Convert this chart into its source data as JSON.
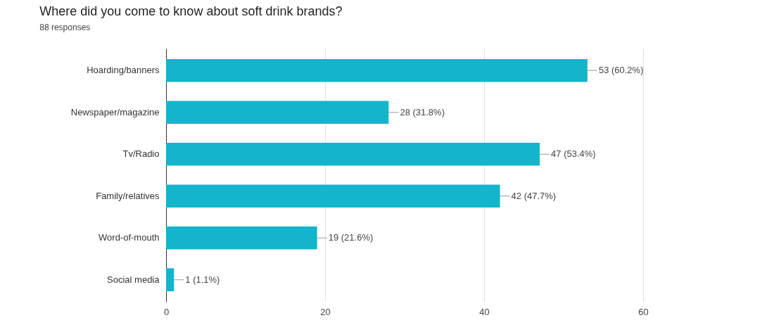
{
  "chart_data": {
    "type": "bar",
    "orientation": "horizontal",
    "title": "Where did you come to know about soft drink brands?",
    "subtitle": "88 responses",
    "categories": [
      "Hoarding/banners",
      "Newspaper/magazine",
      "Tv/Radio",
      "Family/relatives",
      "Word-of-mouth",
      "Social media"
    ],
    "values": [
      53,
      28,
      47,
      42,
      19,
      1
    ],
    "value_labels": [
      "53 (60.2%)",
      "28 (31.8%)",
      "47 (53.4%)",
      "42 (47.7%)",
      "19 (21.6%)",
      "1 (1.1%)"
    ],
    "color": "#12b5cb",
    "xlim": [
      0,
      60
    ],
    "xticks": [
      0,
      20,
      40,
      60
    ],
    "grid": "x"
  }
}
